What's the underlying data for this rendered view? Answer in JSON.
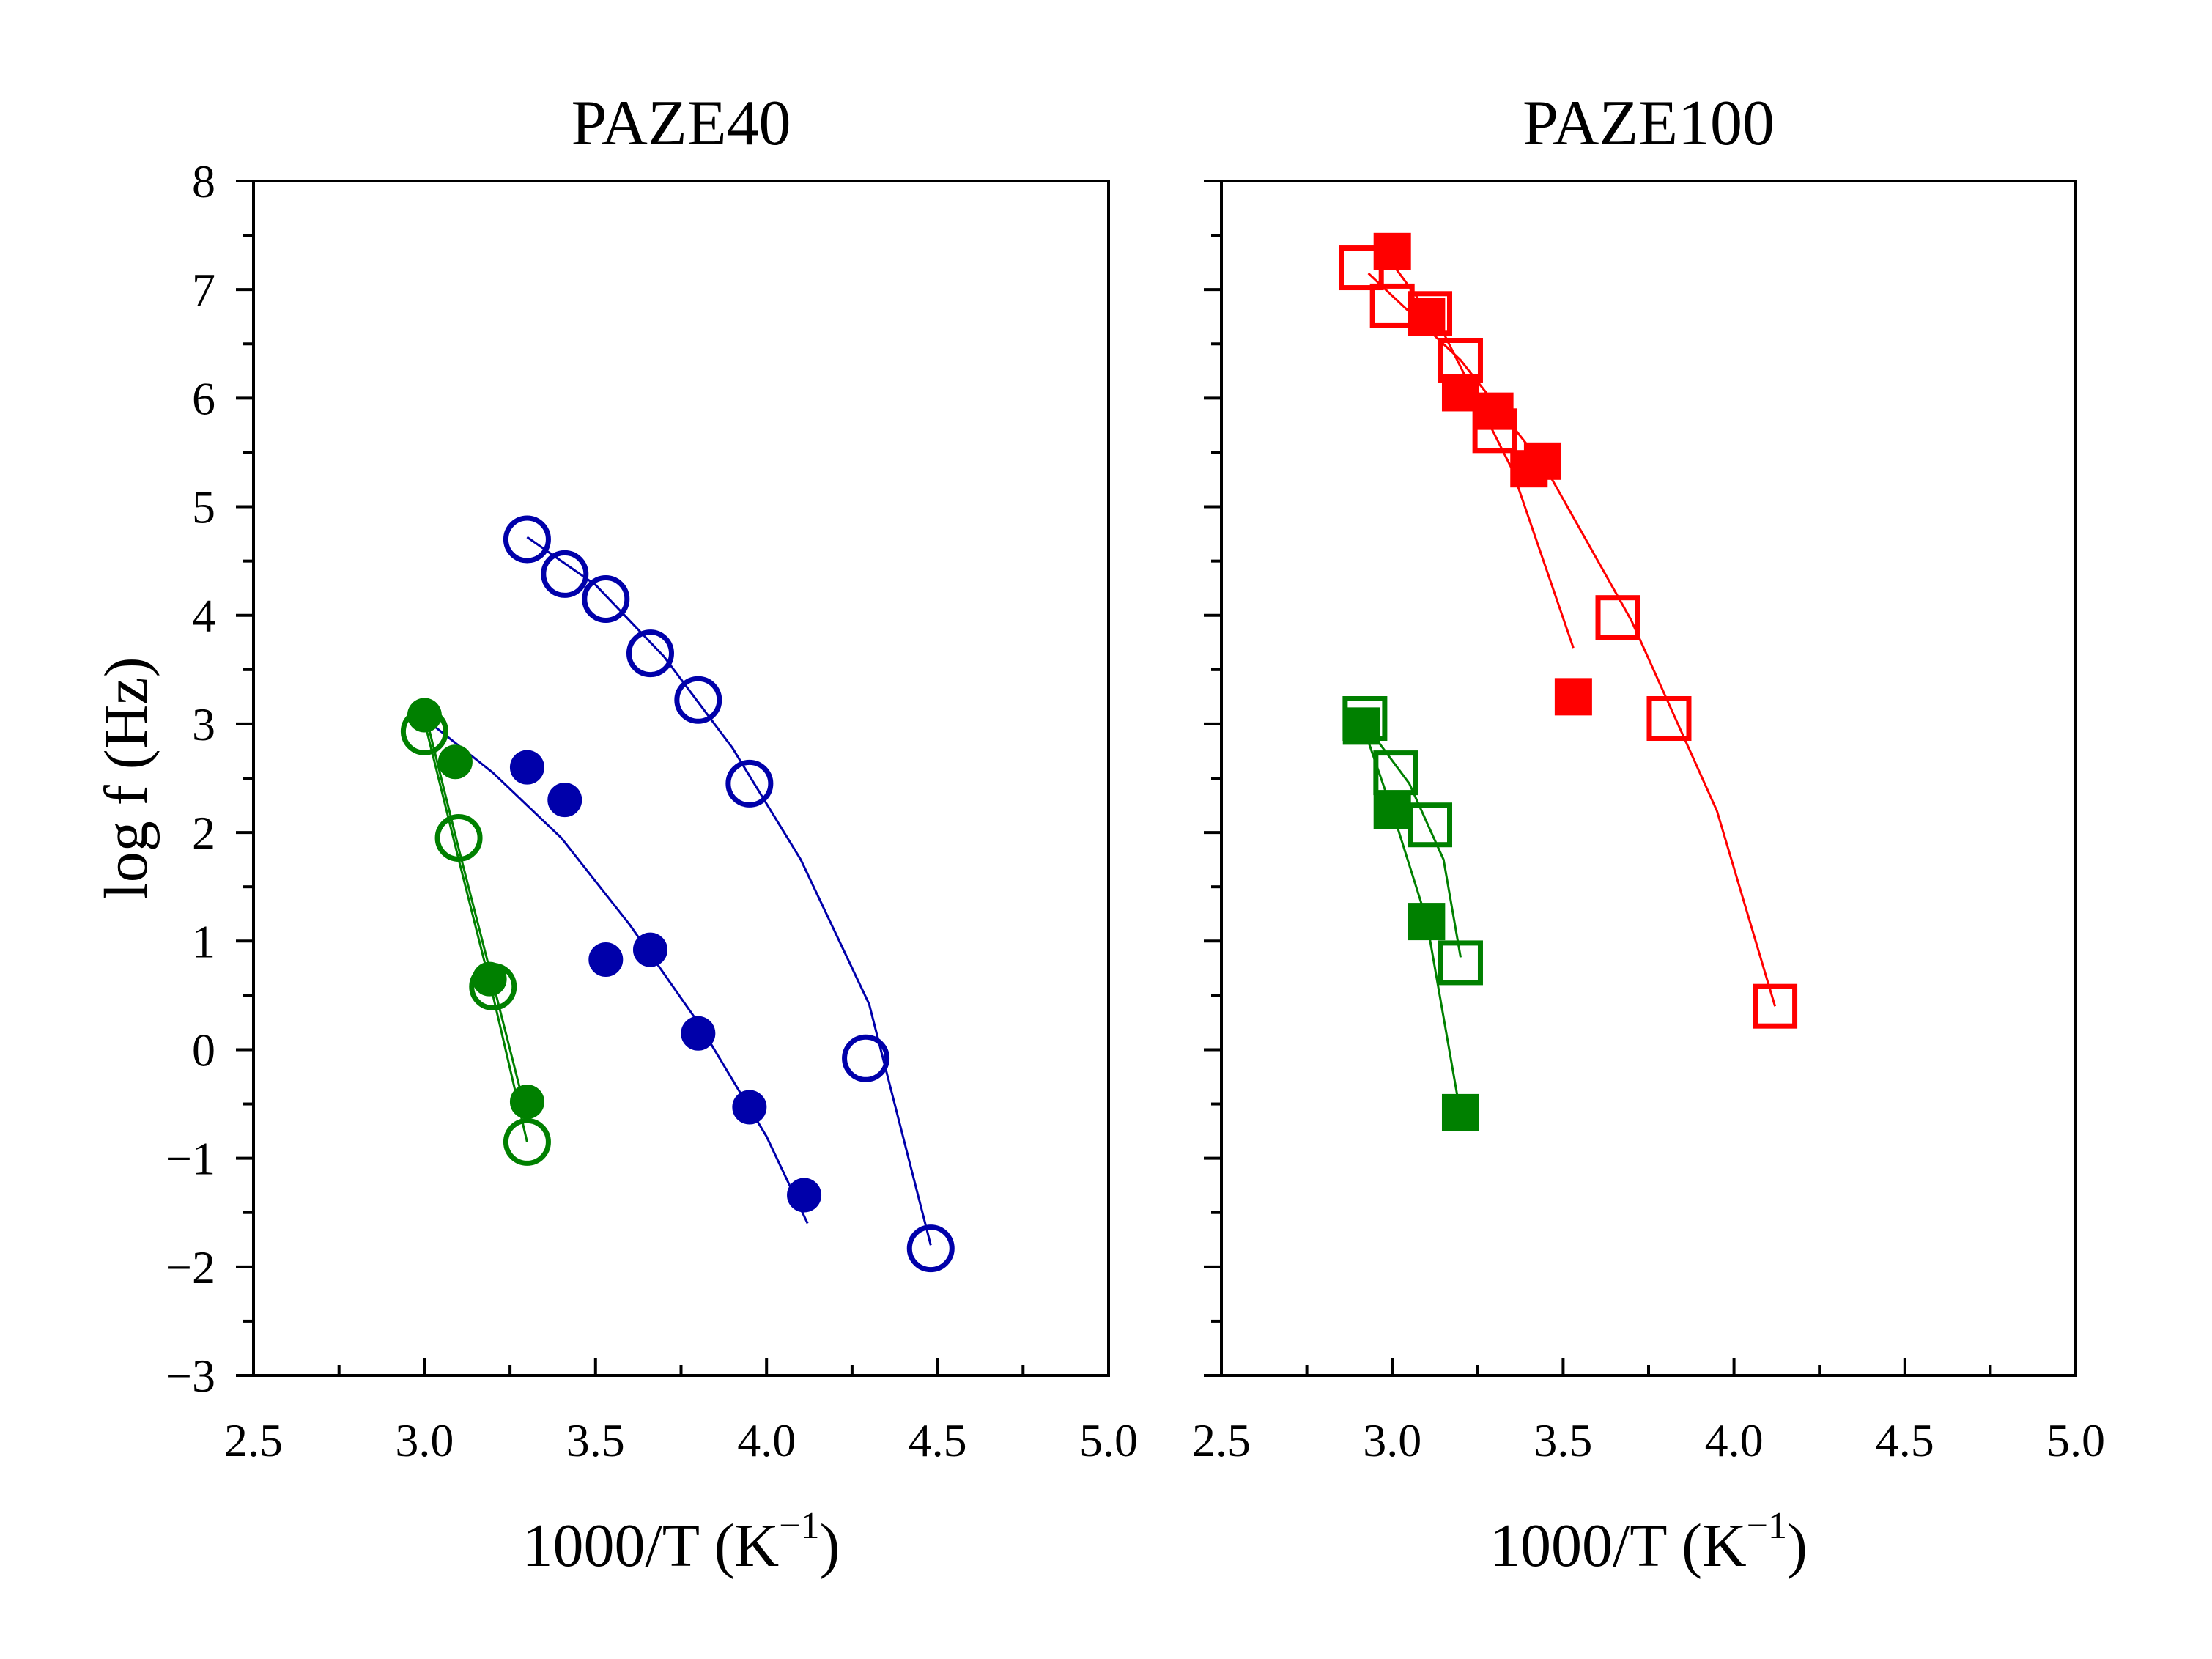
{
  "chart_data": [
    {
      "type": "scatter",
      "title": "PAZE40",
      "xlabel": "1000/T (K",
      "xlabel_sup": "−1",
      "xlabel_close": ")",
      "ylabel": "log f (Hz)",
      "xlim": [
        2.5,
        5.0
      ],
      "ylim": [
        -3,
        8
      ],
      "x_ticks": [
        2.5,
        3.0,
        3.5,
        4.0,
        4.5,
        5.0
      ],
      "x_tick_labels": [
        "2.5",
        "3.0",
        "3.5",
        "4.0",
        "4.5",
        "5.0"
      ],
      "y_ticks": [
        -3,
        -2,
        -1,
        0,
        1,
        2,
        3,
        4,
        5,
        6,
        7,
        8
      ],
      "y_tick_labels": [
        "−3",
        "−2",
        "−1",
        "0",
        "1",
        "2",
        "3",
        "4",
        "5",
        "6",
        "7",
        "8"
      ],
      "grid": false,
      "series": [
        {
          "marker": "circle-open",
          "color": "#0000aa",
          "x": [
            3.3,
            3.41,
            3.53,
            3.66,
            3.8,
            3.95,
            4.29,
            4.48
          ],
          "y": [
            4.7,
            4.38,
            4.15,
            3.65,
            3.22,
            2.45,
            -0.08,
            -1.83
          ],
          "fit": [
            [
              3.3,
              4.72
            ],
            [
              3.5,
              4.28
            ],
            [
              3.7,
              3.62
            ],
            [
              3.9,
              2.78
            ],
            [
              4.1,
              1.75
            ],
            [
              4.3,
              0.42
            ],
            [
              4.48,
              -1.8
            ]
          ]
        },
        {
          "marker": "circle-filled",
          "color": "#0000aa",
          "x": [
            3.3,
            3.41,
            3.53,
            3.66,
            3.8,
            3.95,
            4.11
          ],
          "y": [
            2.6,
            2.3,
            0.83,
            0.92,
            0.15,
            -0.53,
            -1.34
          ],
          "fit": [
            [
              3.0,
              3.05
            ],
            [
              3.2,
              2.55
            ],
            [
              3.4,
              1.95
            ],
            [
              3.6,
              1.15
            ],
            [
              3.8,
              0.25
            ],
            [
              4.0,
              -0.8
            ],
            [
              4.12,
              -1.6
            ]
          ]
        },
        {
          "marker": "circle-open",
          "color": "#008000",
          "x": [
            3.0,
            3.1,
            3.2,
            3.3
          ],
          "y": [
            2.93,
            1.95,
            0.58,
            -0.85
          ],
          "fit": [
            [
              3.0,
              3.02
            ],
            [
              3.1,
              1.75
            ],
            [
              3.2,
              0.5
            ],
            [
              3.3,
              -0.85
            ]
          ]
        },
        {
          "marker": "circle-filled",
          "color": "#008000",
          "x": [
            3.0,
            3.09,
            3.19,
            3.3
          ],
          "y": [
            3.08,
            2.65,
            0.65,
            -0.48
          ],
          "fit": [
            [
              3.0,
              3.12
            ],
            [
              3.1,
              1.85
            ],
            [
              3.2,
              0.62
            ],
            [
              3.3,
              -0.62
            ]
          ]
        }
      ]
    },
    {
      "type": "scatter",
      "title": "PAZE100",
      "xlabel": "1000/T (K",
      "xlabel_sup": "−1",
      "xlabel_close": ")",
      "ylabel": "",
      "xlim": [
        2.5,
        5.0
      ],
      "ylim": [
        -3,
        8
      ],
      "x_ticks": [
        2.5,
        3.0,
        3.5,
        4.0,
        4.5,
        5.0
      ],
      "x_tick_labels": [
        "2.5",
        "3.0",
        "3.5",
        "4.0",
        "4.5",
        "5.0"
      ],
      "y_ticks": [
        -3,
        -2,
        -1,
        0,
        1,
        2,
        3,
        4,
        5,
        6,
        7,
        8
      ],
      "y_tick_labels": [],
      "grid": false,
      "series": [
        {
          "marker": "square-open",
          "color": "#ff0000",
          "x": [
            2.91,
            3.0,
            3.11,
            3.2,
            3.3,
            3.66,
            3.81,
            4.12
          ],
          "y": [
            7.2,
            6.85,
            6.78,
            6.35,
            5.7,
            3.98,
            3.05,
            0.4
          ],
          "fit": [
            [
              2.93,
              7.15
            ],
            [
              3.2,
              6.35
            ],
            [
              3.45,
              5.35
            ],
            [
              3.7,
              3.95
            ],
            [
              3.95,
              2.2
            ],
            [
              4.12,
              0.4
            ]
          ]
        },
        {
          "marker": "square-filled",
          "color": "#ff0000",
          "x": [
            3.0,
            3.1,
            3.2,
            3.3,
            3.4,
            3.44,
            3.53
          ],
          "y": [
            7.35,
            6.75,
            6.05,
            5.88,
            5.35,
            5.42,
            3.25
          ],
          "fit": [
            [
              2.95,
              7.45
            ],
            [
              3.15,
              6.6
            ],
            [
              3.35,
              5.35
            ],
            [
              3.53,
              3.7
            ]
          ]
        },
        {
          "marker": "square-open",
          "color": "#008000",
          "x": [
            2.92,
            3.01,
            3.11,
            3.2
          ],
          "y": [
            3.05,
            2.55,
            2.07,
            0.8
          ],
          "fit": [
            [
              2.92,
              3.0
            ],
            [
              3.05,
              2.45
            ],
            [
              3.15,
              1.75
            ],
            [
              3.2,
              0.85
            ]
          ]
        },
        {
          "marker": "square-filled",
          "color": "#008000",
          "x": [
            2.91,
            3.0,
            3.1,
            3.2
          ],
          "y": [
            2.98,
            2.2,
            1.18,
            -0.58
          ],
          "fit": [
            [
              2.91,
              3.02
            ],
            [
              3.0,
              2.2
            ],
            [
              3.1,
              1.2
            ],
            [
              3.2,
              -0.6
            ]
          ]
        }
      ]
    }
  ]
}
